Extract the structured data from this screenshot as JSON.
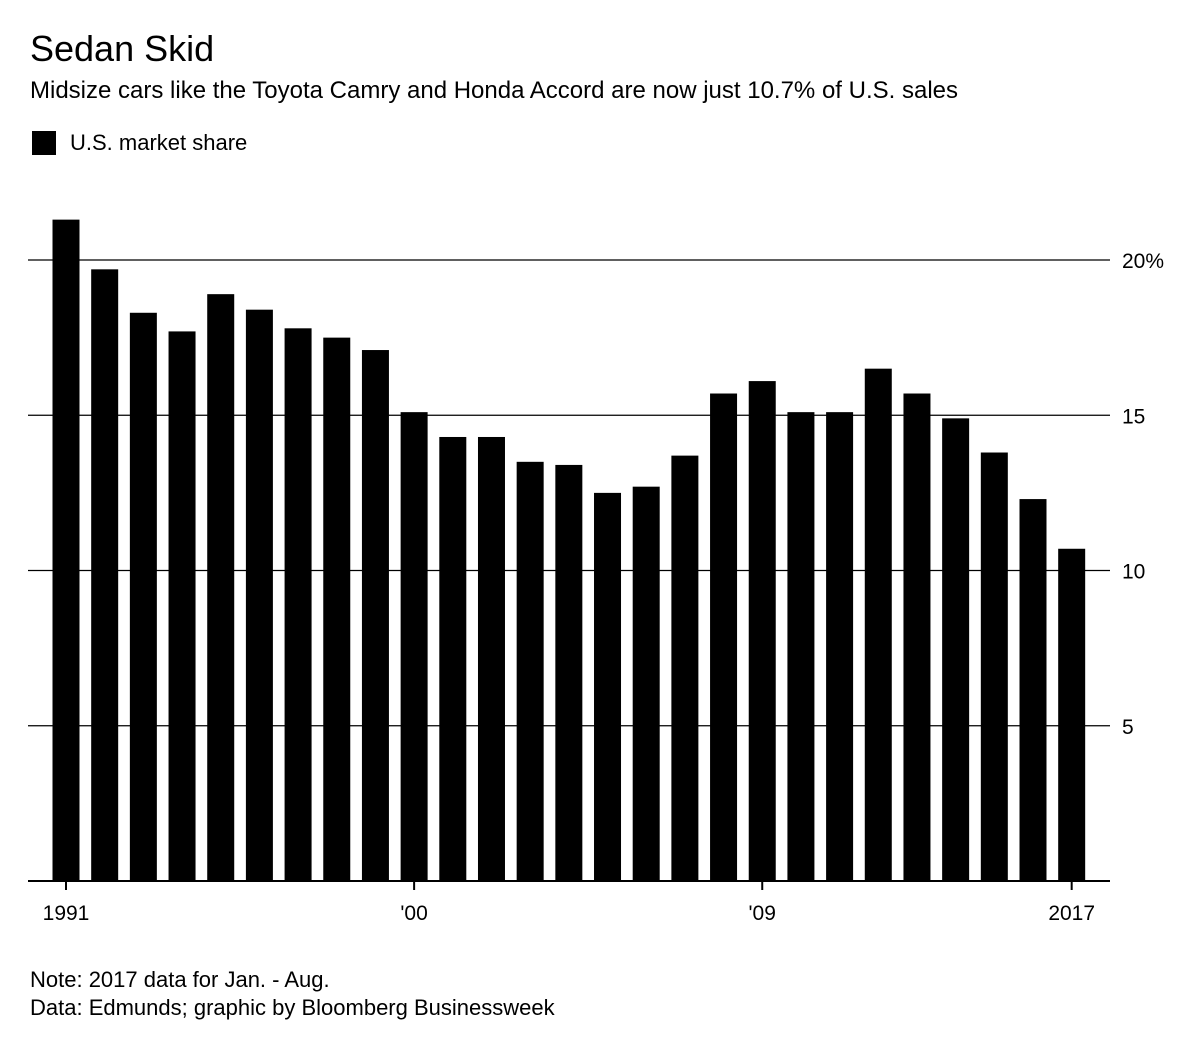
{
  "header": {
    "title": "Sedan Skid",
    "subtitle": "Midsize cars like the Toyota Camry and Honda Accord are now just 10.7% of U.S. sales"
  },
  "legend": {
    "label": "U.S. market share",
    "color": "#000000"
  },
  "footer": {
    "note": "Note: 2017 data for Jan. - Aug.",
    "source": "Data: Edmunds; graphic by Bloomberg Businessweek"
  },
  "chart_data": {
    "type": "bar",
    "categories": [
      "1991",
      "1992",
      "1993",
      "1994",
      "1995",
      "1996",
      "1997",
      "1998",
      "1999",
      "2000",
      "2001",
      "2002",
      "2003",
      "2004",
      "2005",
      "2006",
      "2007",
      "2008",
      "2009",
      "2010",
      "2011",
      "2012",
      "2013",
      "2014",
      "2015",
      "2016",
      "2017"
    ],
    "series": [
      {
        "name": "U.S. market share",
        "values": [
          21.3,
          19.7,
          18.3,
          17.7,
          18.9,
          18.4,
          17.8,
          17.5,
          17.1,
          15.1,
          14.3,
          14.3,
          13.5,
          13.4,
          12.5,
          12.7,
          13.7,
          15.7,
          16.1,
          15.1,
          15.1,
          16.5,
          15.7,
          14.9,
          13.8,
          12.3,
          10.7
        ]
      }
    ],
    "x_tick_labels": [
      {
        "category": "1991",
        "label": "1991"
      },
      {
        "category": "2000",
        "label": "'00"
      },
      {
        "category": "2009",
        "label": "'09"
      },
      {
        "category": "2017",
        "label": "2017"
      }
    ],
    "y_ticks": [
      {
        "value": 5,
        "label": "5"
      },
      {
        "value": 10,
        "label": "10"
      },
      {
        "value": 15,
        "label": "15"
      },
      {
        "value": 20,
        "label": "20%"
      }
    ],
    "ylim": [
      0,
      21.5
    ],
    "y_axis_side": "right",
    "grid": true,
    "bar_color": "#000000"
  }
}
